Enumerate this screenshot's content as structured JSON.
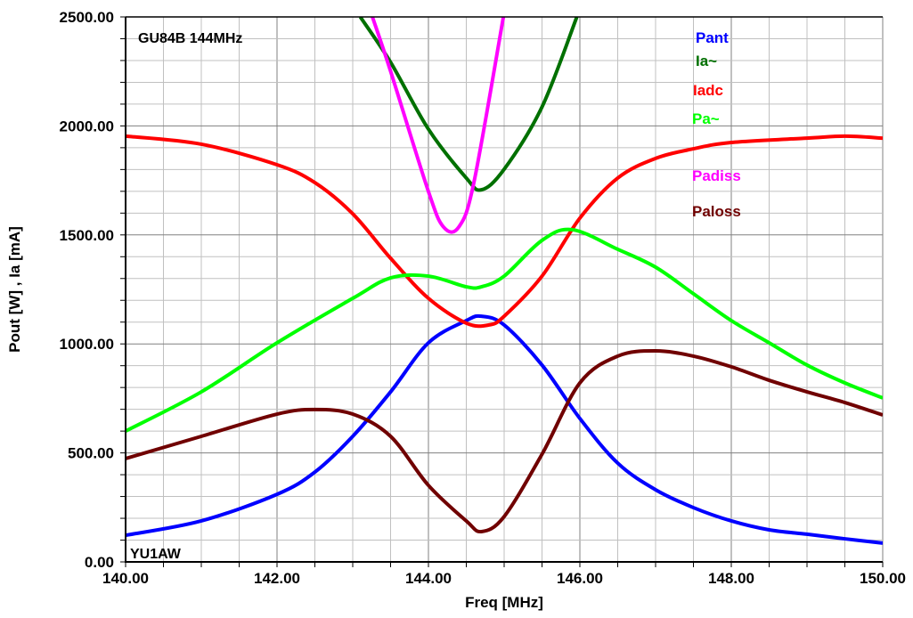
{
  "chart_data": {
    "type": "line",
    "title": "GU84B 144MHz",
    "annotation": "YU1AW",
    "xlabel": "Freq [MHz]",
    "ylabel": "Pout [W] , Ia [mA]",
    "xlim": [
      140,
      150
    ],
    "ylim": [
      0,
      2500
    ],
    "xticks": [
      "140.00",
      "142.00",
      "144.00",
      "146.00",
      "148.00",
      "150.00"
    ],
    "yticks": [
      "0.00",
      "500.00",
      "1000.00",
      "1500.00",
      "2000.00",
      "2500.00"
    ],
    "grid": true,
    "legend_placement": "top-right",
    "series": [
      {
        "name": "Pant",
        "color": "#0000ff",
        "x": [
          140,
          141,
          142,
          142.5,
          143,
          143.5,
          144,
          144.5,
          144.7,
          145,
          145.5,
          146,
          146.5,
          147,
          147.5,
          148,
          148.5,
          149,
          149.5,
          150
        ],
        "y": [
          122,
          188,
          310,
          412,
          576,
          780,
          1005,
          1107,
          1127,
          1087,
          903,
          658,
          453,
          331,
          249,
          188,
          147,
          127,
          106,
          86
        ]
      },
      {
        "name": "Ia~",
        "color": "#007000",
        "x": [
          143.1,
          143.5,
          144,
          144.5,
          144.7,
          145,
          145.5,
          145.96
        ],
        "y": [
          2500,
          2292,
          1985,
          1761,
          1707,
          1801,
          2087,
          2500
        ]
      },
      {
        "name": "Iadc",
        "color": "#ff0000",
        "x": [
          140,
          141,
          142,
          142.5,
          143,
          143.5,
          144,
          144.5,
          144.8,
          145,
          145.5,
          146,
          146.5,
          147,
          147.5,
          148,
          149,
          149.5,
          150
        ],
        "y": [
          1953,
          1916,
          1822,
          1740,
          1597,
          1393,
          1209,
          1095,
          1087,
          1127,
          1311,
          1577,
          1761,
          1851,
          1895,
          1924,
          1944,
          1953,
          1944
        ]
      },
      {
        "name": "Pa~",
        "color": "#00ff00",
        "x": [
          140,
          141,
          142,
          143,
          143.5,
          144,
          144.5,
          144.7,
          145,
          145.5,
          145.9,
          146.5,
          147,
          147.5,
          148,
          148.5,
          149,
          149.5,
          150
        ],
        "y": [
          600,
          780,
          1005,
          1209,
          1303,
          1311,
          1262,
          1262,
          1311,
          1475,
          1524,
          1434,
          1352,
          1230,
          1107,
          1005,
          903,
          821,
          752
        ]
      },
      {
        "name": "Padiss",
        "color": "#ff00ff",
        "x": [
          143.26,
          143.5,
          144,
          144.2,
          144.4,
          144.6,
          144.99
        ],
        "y": [
          2500,
          2251,
          1699,
          1536,
          1536,
          1740,
          2500
        ]
      },
      {
        "name": "Paloss",
        "color": "#700000",
        "x": [
          140,
          141,
          142,
          142.5,
          143,
          143.5,
          144,
          144.5,
          144.7,
          145,
          145.5,
          146,
          146.5,
          147,
          147.5,
          148,
          148.5,
          149,
          149.5,
          150
        ],
        "y": [
          474,
          576,
          678,
          699,
          678,
          576,
          351,
          188,
          139,
          208,
          494,
          821,
          944,
          968,
          944,
          895,
          833,
          780,
          731,
          674
        ]
      }
    ]
  }
}
